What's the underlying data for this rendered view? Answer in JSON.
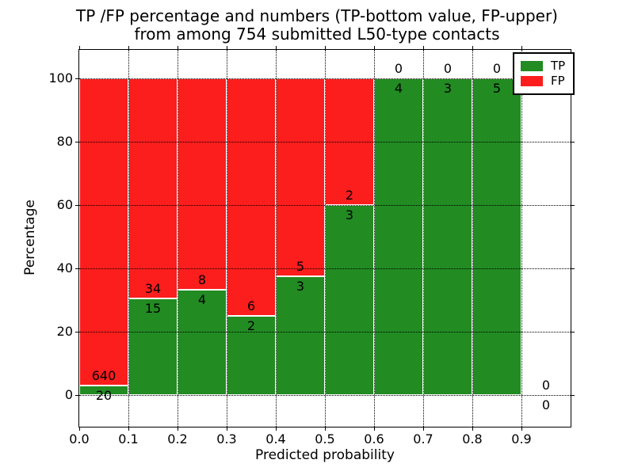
{
  "figure": {
    "title_line1": "TP /FP percentage and numbers (TP-bottom value, FP-upper)",
    "title_line2": "from among 754 submitted L50-type contacts",
    "xlabel": "Predicted probability",
    "ylabel": "Percentage"
  },
  "legend": {
    "position": "upper right",
    "items": [
      {
        "label": "TP",
        "color": "#228b22"
      },
      {
        "label": "FP",
        "color": "#fc1d1d"
      }
    ]
  },
  "chart_data": {
    "type": "bar",
    "variant": "stacked-percentage-histogram",
    "title": "TP /FP percentage and numbers (TP-bottom value, FP-upper)\nfrom among 754 submitted L50-type contacts",
    "xlabel": "Predicted probability",
    "ylabel": "Percentage",
    "total_contacts": 754,
    "bin_width": 0.1,
    "bin_starts": [
      0.0,
      0.1,
      0.2,
      0.3,
      0.4,
      0.5,
      0.6,
      0.7,
      0.8,
      0.9
    ],
    "series": [
      {
        "name": "TP",
        "color": "#228b22",
        "counts": [
          20,
          15,
          4,
          2,
          3,
          3,
          4,
          3,
          5,
          0
        ]
      },
      {
        "name": "FP",
        "color": "#fc1d1d",
        "counts": [
          640,
          34,
          8,
          6,
          5,
          2,
          0,
          0,
          0,
          0
        ]
      }
    ],
    "tp_percent": [
      3.0,
      30.6,
      33.3,
      25.0,
      37.5,
      60.0,
      100.0,
      100.0,
      100.0,
      null
    ],
    "xticks": [
      "0.0",
      "0.1",
      "0.2",
      "0.3",
      "0.4",
      "0.5",
      "0.6",
      "0.7",
      "0.8",
      "0.9"
    ],
    "yticks": [
      0,
      20,
      40,
      60,
      80,
      100
    ],
    "xlim": [
      0.0,
      1.0
    ],
    "ylim": [
      -10,
      109
    ],
    "grid": true,
    "grid_style": "dotted",
    "bar_edge_color": "#ffffff",
    "background_color": "#ffffff"
  }
}
